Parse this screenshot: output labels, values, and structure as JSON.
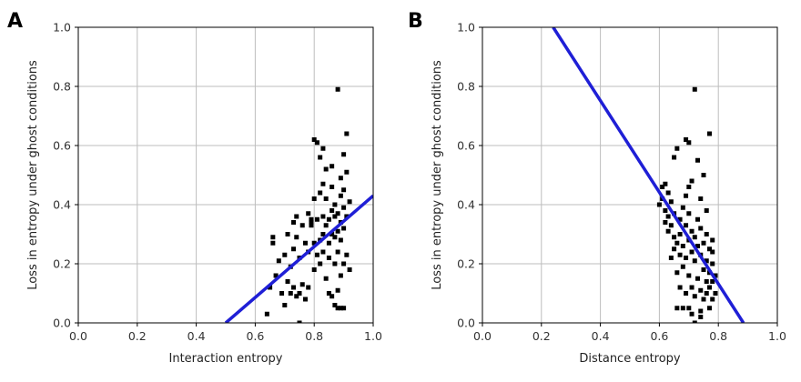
{
  "chart_data": [
    {
      "panel": "A",
      "type": "scatter",
      "xlabel": "Interaction entropy",
      "ylabel": "Loss in entropy under ghost conditions",
      "xlim": [
        0.0,
        1.0
      ],
      "ylim": [
        0.0,
        1.0
      ],
      "xticks": [
        "0.0",
        "0.2",
        "0.4",
        "0.6",
        "0.8",
        "1.0"
      ],
      "yticks": [
        "0.0",
        "0.2",
        "0.4",
        "0.6",
        "0.8",
        "1.0"
      ],
      "grid": true,
      "marker_color": "#000000",
      "line_color": "#1f1fd6",
      "fit_line": {
        "x": [
          0.5,
          1.0
        ],
        "y": [
          0.0,
          0.43
        ]
      },
      "points": [
        [
          0.64,
          0.03
        ],
        [
          0.65,
          0.12
        ],
        [
          0.66,
          0.27
        ],
        [
          0.66,
          0.29
        ],
        [
          0.67,
          0.16
        ],
        [
          0.68,
          0.21
        ],
        [
          0.69,
          0.1
        ],
        [
          0.7,
          0.06
        ],
        [
          0.7,
          0.23
        ],
        [
          0.71,
          0.14
        ],
        [
          0.71,
          0.3
        ],
        [
          0.72,
          0.1
        ],
        [
          0.72,
          0.19
        ],
        [
          0.73,
          0.12
        ],
        [
          0.73,
          0.25
        ],
        [
          0.73,
          0.34
        ],
        [
          0.74,
          0.09
        ],
        [
          0.74,
          0.29
        ],
        [
          0.74,
          0.36
        ],
        [
          0.75,
          0.0
        ],
        [
          0.75,
          0.1
        ],
        [
          0.75,
          0.22
        ],
        [
          0.76,
          0.13
        ],
        [
          0.76,
          0.33
        ],
        [
          0.77,
          0.27
        ],
        [
          0.77,
          0.08
        ],
        [
          0.78,
          0.12
        ],
        [
          0.78,
          0.24
        ],
        [
          0.78,
          0.37
        ],
        [
          0.79,
          0.33
        ],
        [
          0.79,
          0.35
        ],
        [
          0.8,
          0.18
        ],
        [
          0.8,
          0.27
        ],
        [
          0.8,
          0.42
        ],
        [
          0.8,
          0.62
        ],
        [
          0.81,
          0.23
        ],
        [
          0.81,
          0.35
        ],
        [
          0.81,
          0.61
        ],
        [
          0.82,
          0.2
        ],
        [
          0.82,
          0.28
        ],
        [
          0.82,
          0.44
        ],
        [
          0.82,
          0.56
        ],
        [
          0.83,
          0.24
        ],
        [
          0.83,
          0.3
        ],
        [
          0.83,
          0.36
        ],
        [
          0.83,
          0.47
        ],
        [
          0.83,
          0.59
        ],
        [
          0.84,
          0.15
        ],
        [
          0.84,
          0.33
        ],
        [
          0.84,
          0.42
        ],
        [
          0.85,
          0.1
        ],
        [
          0.85,
          0.22
        ],
        [
          0.85,
          0.27
        ],
        [
          0.85,
          0.35
        ],
        [
          0.86,
          0.09
        ],
        [
          0.86,
          0.3
        ],
        [
          0.86,
          0.38
        ],
        [
          0.86,
          0.46
        ],
        [
          0.86,
          0.53
        ],
        [
          0.87,
          0.06
        ],
        [
          0.87,
          0.2
        ],
        [
          0.87,
          0.29
        ],
        [
          0.87,
          0.36
        ],
        [
          0.87,
          0.4
        ],
        [
          0.88,
          0.05
        ],
        [
          0.88,
          0.11
        ],
        [
          0.88,
          0.24
        ],
        [
          0.88,
          0.31
        ],
        [
          0.88,
          0.37
        ],
        [
          0.88,
          0.79
        ],
        [
          0.89,
          0.05
        ],
        [
          0.89,
          0.16
        ],
        [
          0.89,
          0.28
        ],
        [
          0.89,
          0.34
        ],
        [
          0.89,
          0.43
        ],
        [
          0.89,
          0.49
        ],
        [
          0.9,
          0.05
        ],
        [
          0.9,
          0.2
        ],
        [
          0.9,
          0.32
        ],
        [
          0.9,
          0.39
        ],
        [
          0.9,
          0.45
        ],
        [
          0.9,
          0.57
        ],
        [
          0.91,
          0.23
        ],
        [
          0.91,
          0.36
        ],
        [
          0.91,
          0.51
        ],
        [
          0.91,
          0.64
        ],
        [
          0.92,
          0.18
        ],
        [
          0.92,
          0.41
        ],
        [
          0.84,
          0.52
        ],
        [
          0.79,
          0.34
        ]
      ]
    },
    {
      "panel": "B",
      "type": "scatter",
      "xlabel": "Distance entropy",
      "ylabel": "Loss in entropy under ghost conditions",
      "xlim": [
        0.0,
        1.0
      ],
      "ylim": [
        0.0,
        1.0
      ],
      "xticks": [
        "0.0",
        "0.2",
        "0.4",
        "0.6",
        "0.8",
        "1.0"
      ],
      "yticks": [
        "0.0",
        "0.2",
        "0.4",
        "0.6",
        "0.8",
        "1.0"
      ],
      "grid": true,
      "marker_color": "#000000",
      "line_color": "#1f1fd6",
      "fit_line": {
        "x": [
          0.24,
          0.885
        ],
        "y": [
          1.0,
          0.0
        ]
      },
      "points": [
        [
          0.6,
          0.4
        ],
        [
          0.61,
          0.42
        ],
        [
          0.61,
          0.46
        ],
        [
          0.62,
          0.38
        ],
        [
          0.62,
          0.47
        ],
        [
          0.63,
          0.31
        ],
        [
          0.63,
          0.36
        ],
        [
          0.63,
          0.44
        ],
        [
          0.64,
          0.22
        ],
        [
          0.64,
          0.33
        ],
        [
          0.64,
          0.41
        ],
        [
          0.65,
          0.25
        ],
        [
          0.65,
          0.29
        ],
        [
          0.65,
          0.37
        ],
        [
          0.65,
          0.56
        ],
        [
          0.66,
          0.05
        ],
        [
          0.66,
          0.17
        ],
        [
          0.66,
          0.27
        ],
        [
          0.66,
          0.59
        ],
        [
          0.67,
          0.12
        ],
        [
          0.67,
          0.23
        ],
        [
          0.67,
          0.3
        ],
        [
          0.67,
          0.35
        ],
        [
          0.68,
          0.05
        ],
        [
          0.68,
          0.19
        ],
        [
          0.68,
          0.26
        ],
        [
          0.68,
          0.39
        ],
        [
          0.69,
          0.1
        ],
        [
          0.69,
          0.22
        ],
        [
          0.69,
          0.33
        ],
        [
          0.69,
          0.43
        ],
        [
          0.69,
          0.62
        ],
        [
          0.7,
          0.05
        ],
        [
          0.7,
          0.16
        ],
        [
          0.7,
          0.28
        ],
        [
          0.7,
          0.37
        ],
        [
          0.7,
          0.61
        ],
        [
          0.71,
          0.03
        ],
        [
          0.71,
          0.12
        ],
        [
          0.71,
          0.24
        ],
        [
          0.71,
          0.31
        ],
        [
          0.71,
          0.48
        ],
        [
          0.72,
          0.0
        ],
        [
          0.72,
          0.09
        ],
        [
          0.72,
          0.21
        ],
        [
          0.72,
          0.29
        ],
        [
          0.72,
          0.79
        ],
        [
          0.73,
          0.15
        ],
        [
          0.73,
          0.26
        ],
        [
          0.73,
          0.35
        ],
        [
          0.73,
          0.55
        ],
        [
          0.74,
          0.02
        ],
        [
          0.74,
          0.11
        ],
        [
          0.74,
          0.23
        ],
        [
          0.74,
          0.32
        ],
        [
          0.74,
          0.42
        ],
        [
          0.75,
          0.08
        ],
        [
          0.75,
          0.18
        ],
        [
          0.75,
          0.27
        ],
        [
          0.75,
          0.5
        ],
        [
          0.76,
          0.1
        ],
        [
          0.76,
          0.14
        ],
        [
          0.76,
          0.21
        ],
        [
          0.76,
          0.3
        ],
        [
          0.76,
          0.38
        ],
        [
          0.77,
          0.05
        ],
        [
          0.77,
          0.12
        ],
        [
          0.77,
          0.17
        ],
        [
          0.77,
          0.25
        ],
        [
          0.77,
          0.64
        ],
        [
          0.78,
          0.08
        ],
        [
          0.78,
          0.14
        ],
        [
          0.78,
          0.2
        ],
        [
          0.78,
          0.28
        ],
        [
          0.79,
          0.1
        ],
        [
          0.79,
          0.16
        ],
        [
          0.7,
          0.46
        ],
        [
          0.62,
          0.34
        ],
        [
          0.74,
          0.04
        ],
        [
          0.78,
          0.24
        ]
      ]
    }
  ]
}
